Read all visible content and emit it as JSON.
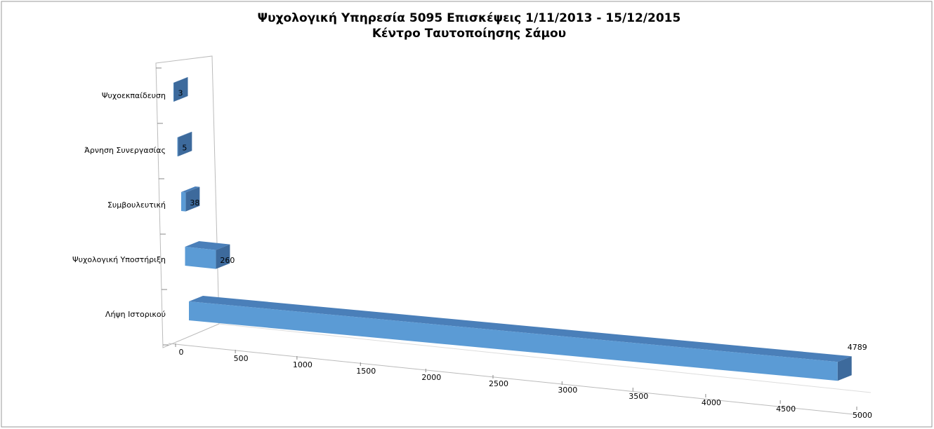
{
  "chart_data": {
    "type": "bar3d_horizontal",
    "title": "Ψυχολογική Υπηρεσία  5095 Επισκέψεις  1/11/2013 - 15/12/2015",
    "subtitle": "Κέντρο Ταυτοποίησης Σάμου",
    "categories": [
      "Ψυχοεκπαίδευση",
      "Άρνηση Συνεργασίας",
      "Συμβουλευτική",
      "Ψυχολογική Υποστήριξη",
      "Λήψη Ιστορικού"
    ],
    "values": [
      3,
      5,
      38,
      260,
      4789
    ],
    "color": "#5b9bd5",
    "xlim": [
      0,
      5000
    ],
    "xticks": [
      0,
      500,
      1000,
      1500,
      2000,
      2500,
      3000,
      3500,
      4000,
      4500,
      5000
    ]
  }
}
